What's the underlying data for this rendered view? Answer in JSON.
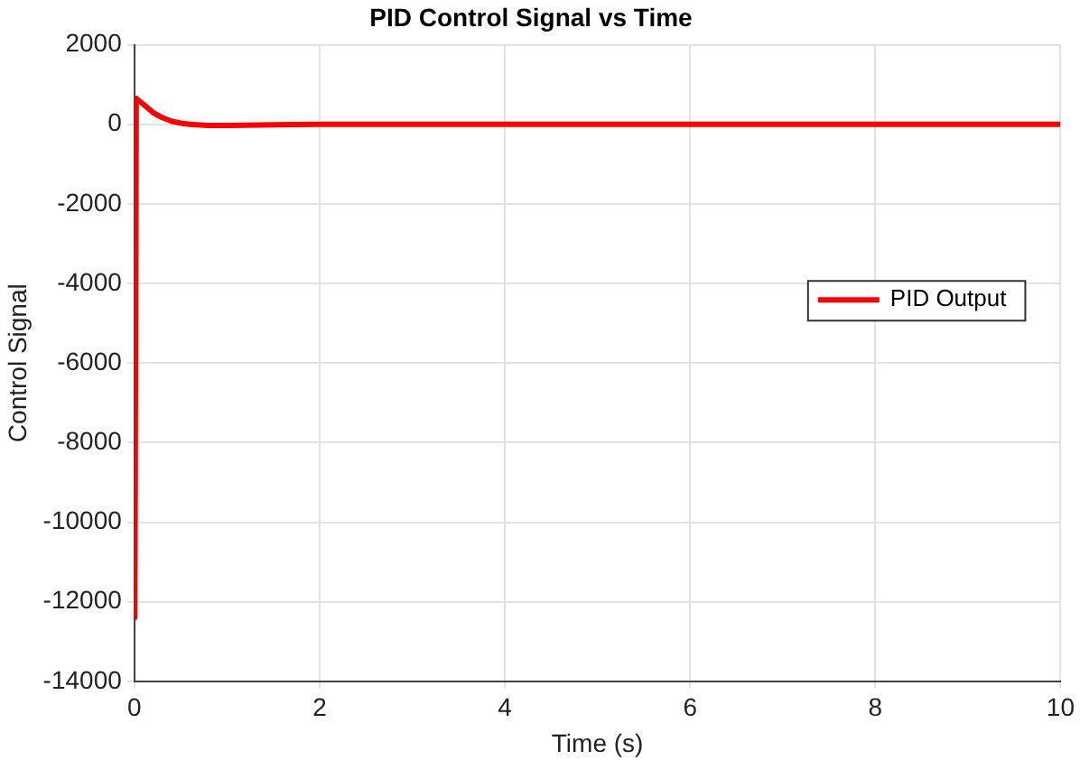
{
  "chart_data": {
    "type": "line",
    "title": "PID Control Signal vs Time",
    "xlabel": "Time (s)",
    "ylabel": "Control Signal",
    "xlim": [
      0,
      10
    ],
    "xticks": [
      0,
      2,
      4,
      6,
      8,
      10
    ],
    "ylim": [
      -14000,
      2000
    ],
    "yticks": [
      -14000,
      -12000,
      -10000,
      -8000,
      -6000,
      -4000,
      -2000,
      0,
      2000
    ],
    "grid": true,
    "legend": "right",
    "marker": "none",
    "line_style": "solid",
    "series": [
      {
        "name": "PID Output",
        "color": "#ff0000",
        "x": [
          0,
          0.005,
          0.02,
          0.1,
          0.2,
          0.3,
          0.4,
          0.5,
          0.6,
          0.8,
          1.0,
          1.5,
          2,
          4,
          6,
          8,
          10
        ],
        "values": [
          0,
          -12400,
          650,
          500,
          300,
          170,
          80,
          30,
          0,
          -30,
          -30,
          -10,
          0,
          0,
          0,
          0,
          0
        ]
      }
    ]
  }
}
